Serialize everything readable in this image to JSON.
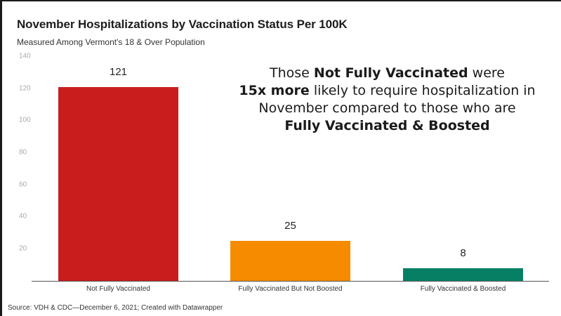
{
  "header": {
    "title": "November Hospitalizations by Vaccination Status Per 100K",
    "subtitle": "Measured Among Vermont's 18 & Over Population"
  },
  "annotation": {
    "line1_pre": "Those ",
    "line1_bold": "Not Fully Vaccinated",
    "line1_post": " were",
    "line2_bold": "15x more",
    "line2_post": " likely to require hospitalization in",
    "line3": "November compared to those who are",
    "line4_bold": "Fully Vaccinated & Boosted"
  },
  "footer": {
    "source": "Source: VDH & CDC—December 6, 2021; Created with Datawrapper"
  },
  "colors": {
    "not_fully_vaccinated": "#c91d1d",
    "vaccinated_not_boosted": "#f68b00",
    "vaccinated_boosted": "#077f64"
  },
  "chart_data": {
    "type": "bar",
    "title": "November Hospitalizations by Vaccination Status Per 100K",
    "subtitle": "Measured Among Vermont's 18 & Over Population",
    "categories": [
      "Not Fully Vaccinated",
      "Fully Vaccinated But Not Boosted",
      "Fully Vaccinated & Boosted"
    ],
    "values": [
      121,
      25,
      8
    ],
    "value_labels": [
      "121",
      "25",
      "8"
    ],
    "bar_colors": [
      "#c91d1d",
      "#f68b00",
      "#077f64"
    ],
    "xlabel": "",
    "ylabel": "",
    "ylim": [
      0,
      140
    ],
    "yticks": [
      "140",
      "120",
      "100",
      "80",
      "60",
      "40",
      "20"
    ],
    "grid": false,
    "legend": "none"
  }
}
